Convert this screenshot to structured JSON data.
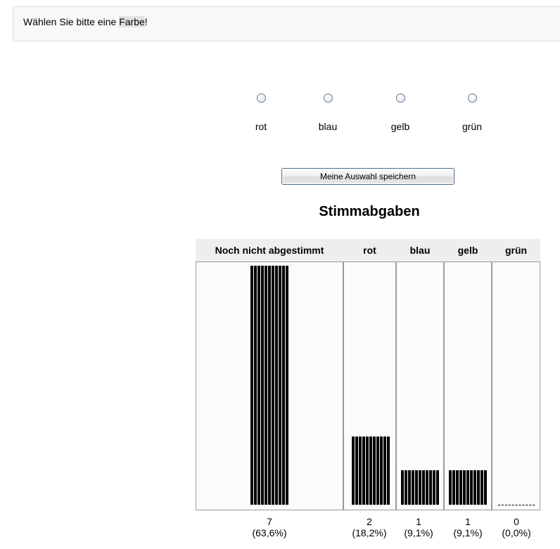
{
  "question": {
    "before": "Wählen Sie bitte eine ",
    "highlight": "Farbe",
    "after": "!"
  },
  "options": [
    {
      "label": "rot",
      "selected": false
    },
    {
      "label": "blau",
      "selected": false
    },
    {
      "label": "gelb",
      "selected": false
    },
    {
      "label": "grün",
      "selected": false
    }
  ],
  "save_button_label": "Meine Auswahl speichern",
  "results": {
    "title": "Stimmabgaben",
    "columns": [
      {
        "label": "Noch nicht abgestimmt",
        "count": "7",
        "percent": "(63,6%)"
      },
      {
        "label": "rot",
        "count": "2",
        "percent": "(18,2%)"
      },
      {
        "label": "blau",
        "count": "1",
        "percent": "(9,1%)"
      },
      {
        "label": "gelb",
        "count": "1",
        "percent": "(9,1%)"
      },
      {
        "label": "grün",
        "count": "0",
        "percent": "(0,0%)"
      }
    ]
  },
  "chart_data": {
    "type": "bar",
    "title": "Stimmabgaben",
    "categories": [
      "Noch nicht abgestimmt",
      "rot",
      "blau",
      "gelb",
      "grün"
    ],
    "values": [
      7,
      2,
      1,
      1,
      0
    ],
    "percentages": [
      63.6,
      18.2,
      9.1,
      9.1,
      0.0
    ],
    "ylim": [
      0,
      7
    ],
    "bar_color": "#000000"
  }
}
